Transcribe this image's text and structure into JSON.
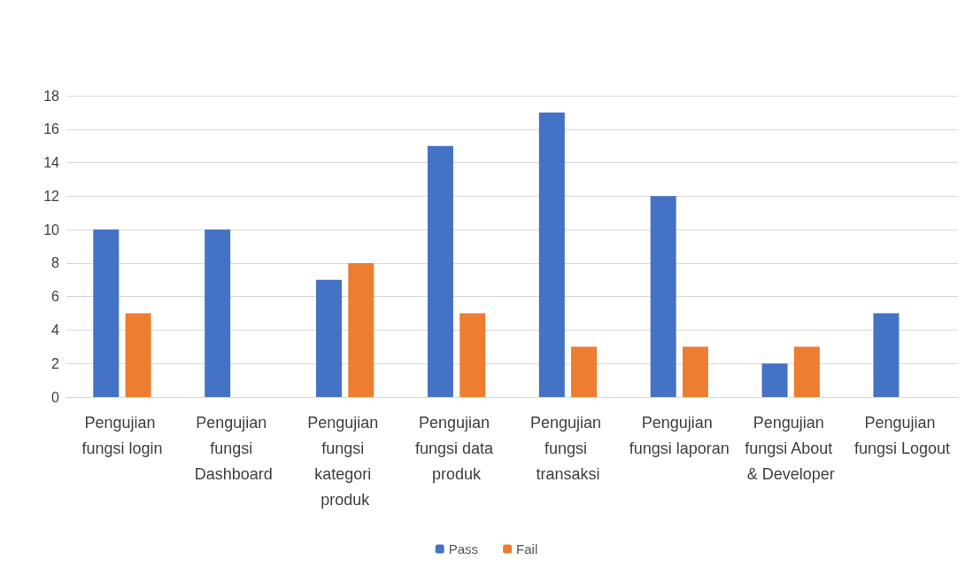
{
  "chart_data": {
    "type": "bar",
    "categories": [
      "Pengujian fungsi login",
      "Pengujian fungsi Dashboard",
      "Pengujian fungsi kategori produk",
      "Pengujian fungsi data produk",
      "Pengujian fungsi transaksi",
      "Pengujian fungsi laporan",
      "Pengujian fungsi About & Developer",
      "Pengujian fungsi Logout"
    ],
    "series": [
      {
        "name": "Pass",
        "color": "#4472c4",
        "values": [
          10,
          10,
          7,
          15,
          17,
          12,
          2,
          5
        ]
      },
      {
        "name": "Fail",
        "color": "#ed7d31",
        "values": [
          5,
          0,
          8,
          5,
          3,
          3,
          3,
          0
        ]
      }
    ],
    "ylim": [
      0,
      18
    ],
    "yticks": [
      0,
      2,
      4,
      6,
      8,
      10,
      12,
      14,
      16,
      18
    ],
    "grid": "y",
    "legend": "bottom"
  }
}
